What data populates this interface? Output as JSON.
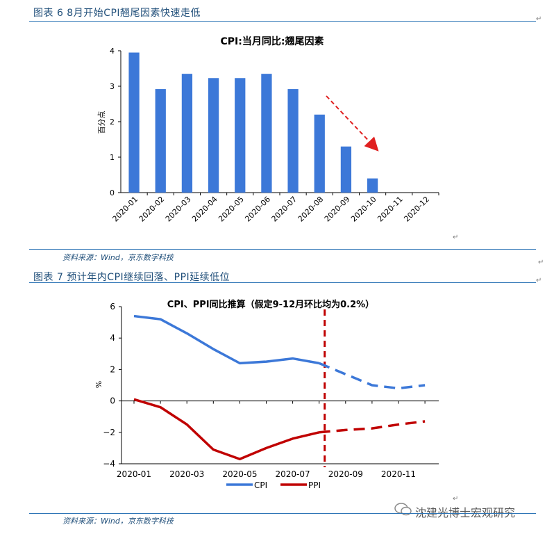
{
  "figure6": {
    "caption": "图表 6 8月开始CPI翘尾因素快速走低",
    "source": "资料来源：Wind，京东数字科技"
  },
  "figure7": {
    "caption": "图表 7 预计年内CPI继续回落、PPI延续低位",
    "source": "资料来源：Wind，京东数字科技"
  },
  "watermark": "沈建光博士宏观研究",
  "return_mark": "↵",
  "colors": {
    "bar": "#3c78d8",
    "cpi": "#3c78d8",
    "ppi": "#c00000",
    "arrow": "#e02020"
  },
  "chart_data": [
    {
      "type": "bar",
      "title": "CPI:当月同比:翘尾因素",
      "ylabel": "百分点",
      "xlabel": "",
      "categories": [
        "2020-01",
        "2020-02",
        "2020-03",
        "2020-04",
        "2020-05",
        "2020-06",
        "2020-07",
        "2020-08",
        "2020-09",
        "2020-10",
        "2020-11",
        "2020-12"
      ],
      "values": [
        3.95,
        2.92,
        3.35,
        3.23,
        3.23,
        3.35,
        2.92,
        2.2,
        1.3,
        0.4,
        null,
        null
      ],
      "ylim": [
        0,
        4
      ],
      "yticks": [
        "0",
        "1",
        "2",
        "3",
        "4"
      ],
      "grid": false,
      "annotation": "red dashed downward arrow"
    },
    {
      "type": "line",
      "title": "CPI、PPI同比推算（假定9-12月环比均为0.2%）",
      "ylabel": "%",
      "xlabel": "",
      "x": [
        "2020-01",
        "2020-02",
        "2020-03",
        "2020-04",
        "2020-05",
        "2020-06",
        "2020-07",
        "2020-08",
        "2020-09",
        "2020-10",
        "2020-11",
        "2020-12"
      ],
      "xticks": [
        "2020-01",
        "2020-03",
        "2020-05",
        "2020-07",
        "2020-09",
        "2020-11"
      ],
      "yticks": [
        "−4",
        "−2",
        "0",
        "2",
        "4",
        "6"
      ],
      "ylim": [
        -4,
        6
      ],
      "series": [
        {
          "name": "CPI",
          "values": [
            5.4,
            5.2,
            4.3,
            3.3,
            2.4,
            2.5,
            2.7,
            2.4,
            1.7,
            1.0,
            0.8,
            1.0
          ]
        },
        {
          "name": "PPI",
          "values": [
            0.1,
            -0.4,
            -1.5,
            -3.1,
            -3.7,
            -3.0,
            -2.4,
            -2.0,
            -1.85,
            -1.75,
            -1.5,
            -1.3
          ]
        }
      ],
      "actual_through": "2020-08",
      "forecast_style": "dashed",
      "vertical_marker": "2020-08",
      "legend": "bottom"
    }
  ]
}
